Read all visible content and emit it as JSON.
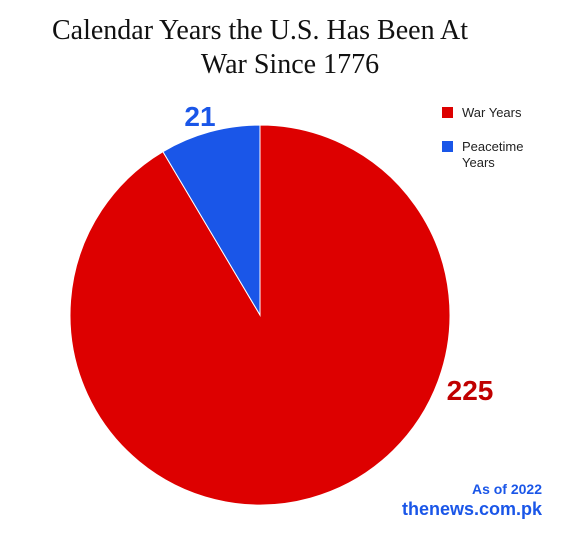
{
  "chart_data": {
    "type": "pie",
    "title_line1": "Calendar Years the U.S. Has Been At",
    "title_line2": "War Since 1776",
    "slices": [
      {
        "name": "War Years",
        "value": 225,
        "color": "#dd0000"
      },
      {
        "name": "Peacetime Years",
        "value": 21,
        "color": "#1a56e8"
      }
    ],
    "legend_placement": "top-right",
    "start_angle_deg": 0,
    "direction": "clockwise"
  },
  "footer": {
    "as_of": "As of 2022",
    "source": "thenews.com.pk",
    "color": "#1a56e8"
  }
}
